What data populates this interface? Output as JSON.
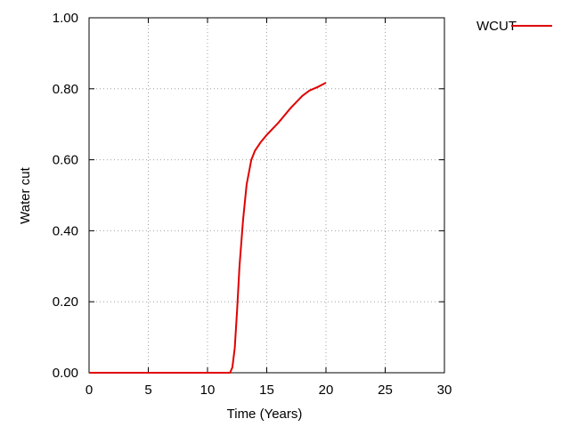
{
  "chart_data": {
    "type": "line",
    "title": "",
    "xlabel": "Time (Years)",
    "ylabel": "Water cut",
    "xlim": [
      0,
      30
    ],
    "ylim": [
      0,
      1
    ],
    "grid": true,
    "legend_position": "top-right",
    "xticks": [
      "0",
      "5",
      "10",
      "15",
      "20",
      "25",
      "30"
    ],
    "yticks": [
      "0.00",
      "0.20",
      "0.40",
      "0.60",
      "0.80",
      "1.00"
    ],
    "series": [
      {
        "name": "WCUT",
        "color": "#e00000",
        "x": [
          0,
          5,
          10,
          11.9,
          12.1,
          12.3,
          12.5,
          12.7,
          13.0,
          13.3,
          13.7,
          14.0,
          14.5,
          15.0,
          16.0,
          17.0,
          18.0,
          18.6,
          19.3,
          20.0
        ],
        "y": [
          0,
          0,
          0,
          0,
          0.015,
          0.07,
          0.18,
          0.3,
          0.43,
          0.53,
          0.6,
          0.625,
          0.65,
          0.67,
          0.705,
          0.745,
          0.78,
          0.795,
          0.805,
          0.817
        ]
      }
    ]
  }
}
